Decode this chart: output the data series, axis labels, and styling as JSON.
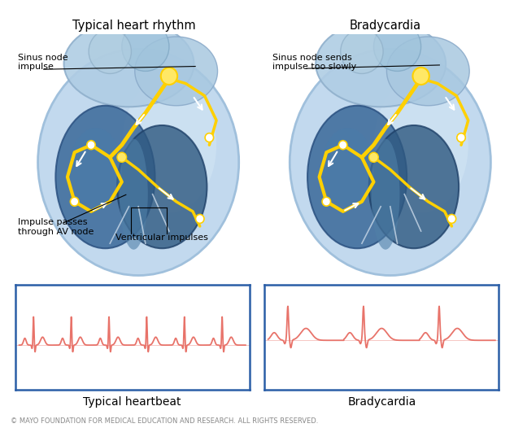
{
  "title_left": "Typical heart rhythm",
  "title_right": "Bradycardia",
  "label_sinus_left": "Sinus node\nimpulse",
  "label_impulse": "Impulse passes\nthrough AV node",
  "label_ventricular": "Ventricular impulses",
  "label_sinus_right": "Sinus node sends\nimpulse too slowly",
  "ecg_left_label": "Typical heartbeat",
  "ecg_right_label": "Bradycardia",
  "copyright": "© MAYO FOUNDATION FOR MEDICAL EDUCATION AND RESEARCH. ALL RIGHTS RESERVED.",
  "ecg_color": "#E8736A",
  "border_color": "#2B5EA7",
  "bg_color": "#FFFFFF",
  "title_fontsize": 10.5,
  "label_fontsize": 8,
  "copyright_fontsize": 6,
  "ecg_label_fontsize": 10,
  "heart_outer_color": "#B8D4EA",
  "heart_mid_color": "#7AAED0",
  "heart_dark_color": "#3A6898",
  "heart_very_dark": "#1E3F6A",
  "gold_color": "#FFD000",
  "gold_light": "#FFE866"
}
